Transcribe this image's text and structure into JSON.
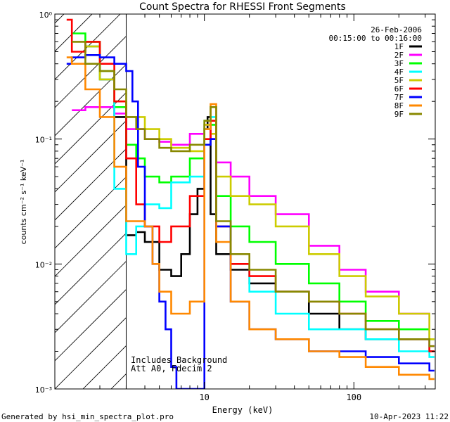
{
  "chart_data": {
    "type": "line",
    "title": "Count Spectra for RHESSI Front Segments",
    "xlabel": "Energy (keV)",
    "ylabel": "counts cm⁻² s⁻¹ keV⁻¹",
    "xscale": "log",
    "yscale": "log",
    "xlim": [
      1,
      350
    ],
    "ylim": [
      0.001,
      1
    ],
    "x_tick_labels": [
      "10",
      "100"
    ],
    "y_tick_labels": [
      "10⁰",
      "10⁻¹",
      "10⁻²",
      "10⁻³"
    ],
    "date": "26-Feb-2006",
    "time_range": "00:15:00 to 00:16:00",
    "shaded_region_max_energy": 3,
    "annotations": [
      "Includes Background",
      "Att A0, Fdecim 2"
    ],
    "footer_left": "Generated by hsi_min_spectra_plot.pro",
    "footer_right": "10-Apr-2023 11:22",
    "series": [
      {
        "name": "1F",
        "color": "#000000",
        "x": [
          1.6,
          2,
          2.5,
          3,
          3.5,
          4,
          5,
          6,
          7,
          8,
          9,
          10,
          10.5,
          11,
          12,
          15,
          20,
          30,
          50,
          80,
          120,
          200,
          320
        ],
        "values": [
          0.55,
          0.3,
          0.15,
          0.017,
          0.018,
          0.015,
          0.009,
          0.008,
          0.012,
          0.025,
          0.04,
          0.12,
          0.15,
          0.025,
          0.012,
          0.009,
          0.007,
          0.006,
          0.004,
          0.003,
          0.0025,
          0.0025,
          0.002
        ]
      },
      {
        "name": "2F",
        "color": "#ff00ff",
        "x": [
          1.3,
          1.6,
          2,
          2.5,
          3,
          4,
          5,
          6,
          8,
          10,
          11,
          12,
          15,
          20,
          30,
          50,
          80,
          120,
          200,
          320
        ],
        "values": [
          0.17,
          0.18,
          0.18,
          0.16,
          0.12,
          0.1,
          0.095,
          0.09,
          0.11,
          0.13,
          0.1,
          0.065,
          0.05,
          0.035,
          0.025,
          0.014,
          0.009,
          0.006,
          0.004,
          0.0022
        ]
      },
      {
        "name": "3F",
        "color": "#00ff00",
        "x": [
          1.3,
          1.6,
          2,
          2.5,
          3,
          3.5,
          4,
          5,
          6,
          8,
          10,
          11,
          12,
          15,
          20,
          30,
          50,
          80,
          120,
          200,
          320
        ],
        "values": [
          0.7,
          0.6,
          0.35,
          0.18,
          0.09,
          0.07,
          0.05,
          0.045,
          0.05,
          0.07,
          0.14,
          0.13,
          0.035,
          0.02,
          0.015,
          0.01,
          0.007,
          0.005,
          0.0035,
          0.003,
          0.0025
        ]
      },
      {
        "name": "4F",
        "color": "#00ffff",
        "x": [
          1.6,
          2,
          2.5,
          3,
          3.5,
          4,
          5,
          6,
          8,
          10,
          11,
          12,
          15,
          20,
          30,
          50,
          80,
          120,
          200,
          320
        ],
        "values": [
          0.55,
          0.3,
          0.04,
          0.012,
          0.02,
          0.03,
          0.028,
          0.045,
          0.05,
          0.12,
          0.15,
          0.02,
          0.01,
          0.006,
          0.004,
          0.003,
          0.003,
          0.0025,
          0.002,
          0.0018
        ]
      },
      {
        "name": "5F",
        "color": "#cccc00",
        "x": [
          1.6,
          2,
          2.5,
          3,
          4,
          5,
          6,
          8,
          10,
          11,
          12,
          15,
          20,
          30,
          50,
          80,
          120,
          200,
          320
        ],
        "values": [
          0.55,
          0.3,
          0.2,
          0.15,
          0.12,
          0.1,
          0.085,
          0.08,
          0.13,
          0.11,
          0.05,
          0.035,
          0.03,
          0.02,
          0.012,
          0.008,
          0.0055,
          0.004,
          0.0025
        ]
      },
      {
        "name": "6F",
        "color": "#ff0000",
        "x": [
          1.2,
          1.3,
          1.6,
          2,
          2.5,
          3,
          3.5,
          4,
          5,
          6,
          8,
          10,
          11,
          12,
          15,
          20,
          30,
          50,
          80,
          120,
          200,
          320
        ],
        "values": [
          0.9,
          0.5,
          0.6,
          0.4,
          0.2,
          0.07,
          0.03,
          0.02,
          0.015,
          0.02,
          0.035,
          0.1,
          0.14,
          0.02,
          0.01,
          0.008,
          0.006,
          0.005,
          0.004,
          0.003,
          0.0025,
          0.002
        ]
      },
      {
        "name": "7F",
        "color": "#0000ff",
        "x": [
          1.2,
          1.3,
          1.6,
          2,
          2.5,
          3,
          3.3,
          3.6,
          4,
          4.5,
          5,
          5.5,
          6,
          6.5,
          10,
          11,
          12,
          15,
          20,
          30,
          50,
          80,
          120,
          200,
          320
        ],
        "values": [
          0.4,
          0.45,
          0.47,
          0.45,
          0.4,
          0.35,
          0.2,
          0.06,
          0.02,
          0.01,
          0.005,
          0.003,
          0.0015,
          0.001,
          0.09,
          0.1,
          0.02,
          0.005,
          0.003,
          0.0025,
          0.002,
          0.002,
          0.0018,
          0.0016,
          0.0014
        ]
      },
      {
        "name": "8F",
        "color": "#ff8800",
        "x": [
          1.2,
          1.3,
          1.6,
          2,
          2.5,
          3,
          4,
          4.5,
          5,
          6,
          8,
          10,
          11,
          12,
          15,
          20,
          30,
          50,
          80,
          120,
          200,
          320
        ],
        "values": [
          0.45,
          0.4,
          0.25,
          0.15,
          0.06,
          0.022,
          0.02,
          0.01,
          0.006,
          0.004,
          0.005,
          0.12,
          0.19,
          0.015,
          0.005,
          0.003,
          0.0025,
          0.002,
          0.0018,
          0.0015,
          0.0013,
          0.0012
        ]
      },
      {
        "name": "9F",
        "color": "#888800",
        "x": [
          1.3,
          1.6,
          2,
          2.5,
          3,
          3.5,
          4,
          5,
          6,
          8,
          10,
          11,
          12,
          15,
          20,
          30,
          50,
          80,
          120,
          200,
          320
        ],
        "values": [
          0.6,
          0.4,
          0.35,
          0.25,
          0.15,
          0.12,
          0.1,
          0.085,
          0.08,
          0.09,
          0.14,
          0.18,
          0.022,
          0.012,
          0.009,
          0.006,
          0.005,
          0.004,
          0.003,
          0.0025,
          0.0022
        ]
      }
    ]
  }
}
